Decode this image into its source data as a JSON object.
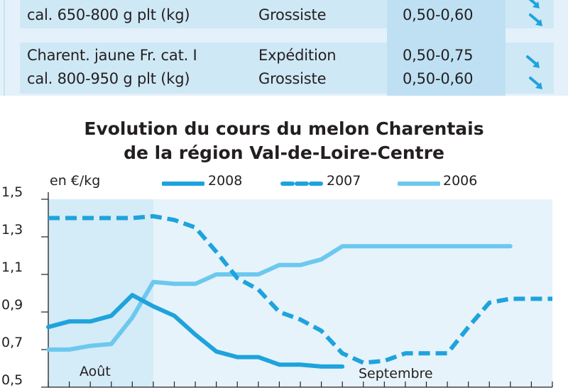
{
  "table": {
    "rows": [
      {
        "product": [
          "",
          "cal. 650-800 g plt (kg)"
        ],
        "stage": [
          "",
          "Grossiste"
        ],
        "price": [
          "",
          "0,50-0,60"
        ],
        "trend": [
          "down-arrow-icon",
          "down-arrow-icon"
        ]
      },
      {
        "product": [
          "Charent. jaune Fr. cat. I",
          "cal. 800-950 g plt (kg)"
        ],
        "stage": [
          "Expédition",
          "Grossiste"
        ],
        "price": [
          "0,50-0,75",
          "0,50-0,60"
        ],
        "trend": [
          "down-arrow-icon",
          "down-arrow-icon"
        ]
      }
    ]
  },
  "chart_data": {
    "type": "line",
    "title": "Evolution du cours du melon Charentais",
    "subtitle": "de la région Val-de-Loire-Centre",
    "ylabel": "en €/kg",
    "ylim": [
      0.5,
      1.5
    ],
    "y_ticks": [
      "1,5",
      "1,3",
      "1,1",
      "0,9",
      "0,7",
      "0,5"
    ],
    "y_tick_values": [
      1.5,
      1.3,
      1.1,
      0.9,
      0.7,
      0.5
    ],
    "x_count": 25,
    "months": [
      {
        "label": "Août",
        "start": 0,
        "end": 5
      },
      {
        "label": "Septembre",
        "start": 5,
        "end": 25
      }
    ],
    "legend_position": "top",
    "grid": false,
    "series": [
      {
        "name": "2008",
        "style": "solid-dark",
        "color": "#1ea3dc",
        "x": [
          0,
          1,
          2,
          3,
          4,
          5,
          6,
          7,
          8,
          9,
          10,
          11,
          12,
          13,
          14
        ],
        "values": [
          0.82,
          0.85,
          0.85,
          0.88,
          0.99,
          0.93,
          0.88,
          0.78,
          0.69,
          0.66,
          0.66,
          0.62,
          0.62,
          0.61,
          0.61
        ]
      },
      {
        "name": "2007",
        "style": "dashed",
        "color": "#1ea3dc",
        "x": [
          0,
          1,
          2,
          3,
          4,
          5,
          6,
          7,
          8,
          9,
          10,
          11,
          12,
          13,
          14,
          15,
          16,
          17,
          18,
          19,
          20,
          21,
          22,
          23,
          24
        ],
        "values": [
          1.4,
          1.4,
          1.4,
          1.4,
          1.4,
          1.41,
          1.39,
          1.35,
          1.22,
          1.08,
          1.02,
          0.9,
          0.86,
          0.8,
          0.68,
          0.63,
          0.64,
          0.68,
          0.68,
          0.68,
          0.82,
          0.95,
          0.97,
          0.97,
          0.97
        ]
      },
      {
        "name": "2006",
        "style": "solid-light",
        "color": "#6cc8ef",
        "x": [
          0,
          1,
          2,
          3,
          4,
          5,
          6,
          7,
          8,
          9,
          10,
          11,
          12,
          13,
          14,
          15,
          16,
          17,
          18,
          19,
          20,
          21,
          22
        ],
        "values": [
          0.7,
          0.7,
          0.72,
          0.73,
          0.87,
          1.06,
          1.05,
          1.05,
          1.1,
          1.1,
          1.1,
          1.15,
          1.15,
          1.18,
          1.25,
          1.25,
          1.25,
          1.25,
          1.25,
          1.25,
          1.25,
          1.25,
          1.25
        ]
      }
    ]
  }
}
